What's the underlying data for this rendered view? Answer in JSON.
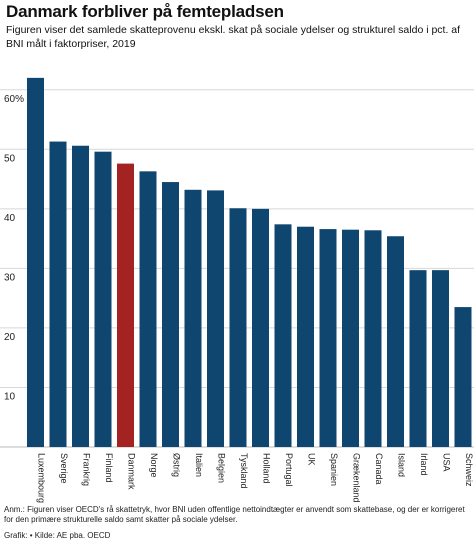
{
  "header": {
    "title": "Danmark forbliver på femtepladsen",
    "subtitle": "Figuren viser det samlede skatteprovenu ekskl. skat på sociale ydelser og strukturel saldo i pct. af BNI målt i faktorpriser, 2019"
  },
  "footer": {
    "note": "Anm.: Figuren viser OECD's rå skattetryk, hvor BNI uden offentlige nettoindtægter er anvendt som skattebase, og der er korrigeret for den primære strukturelle saldo samt skatter på sociale ydelser.",
    "source": "Grafik: • Kilde: AE pba. OECD"
  },
  "colors": {
    "bar": "#0f4670",
    "highlight": "#a32222",
    "grid": "#d8d8d8"
  },
  "chart_data": {
    "type": "bar",
    "categories": [
      "Luxembourg",
      "Sverige",
      "Frankrig",
      "Finland",
      "Danmark",
      "Norge",
      "Østrig",
      "Italien",
      "Belgien",
      "Tyskland",
      "Holland",
      "Portugal",
      "UK",
      "Spanien",
      "Grækenland",
      "Canada",
      "Island",
      "Irland",
      "USA",
      "Schweiz"
    ],
    "values": [
      62.0,
      51.3,
      50.6,
      49.6,
      47.6,
      46.3,
      44.5,
      43.2,
      43.1,
      40.1,
      40.0,
      37.4,
      37.0,
      36.6,
      36.5,
      36.4,
      35.4,
      29.7,
      29.7,
      23.5
    ],
    "highlight_category": "Danmark",
    "yticks": [
      {
        "value": 10,
        "label": "10"
      },
      {
        "value": 20,
        "label": "20"
      },
      {
        "value": 30,
        "label": "30"
      },
      {
        "value": 40,
        "label": "40"
      },
      {
        "value": 50,
        "label": "50"
      },
      {
        "value": 60,
        "label": "60%"
      }
    ],
    "ylim": [
      0,
      65
    ],
    "grid": true,
    "legend": "none"
  }
}
